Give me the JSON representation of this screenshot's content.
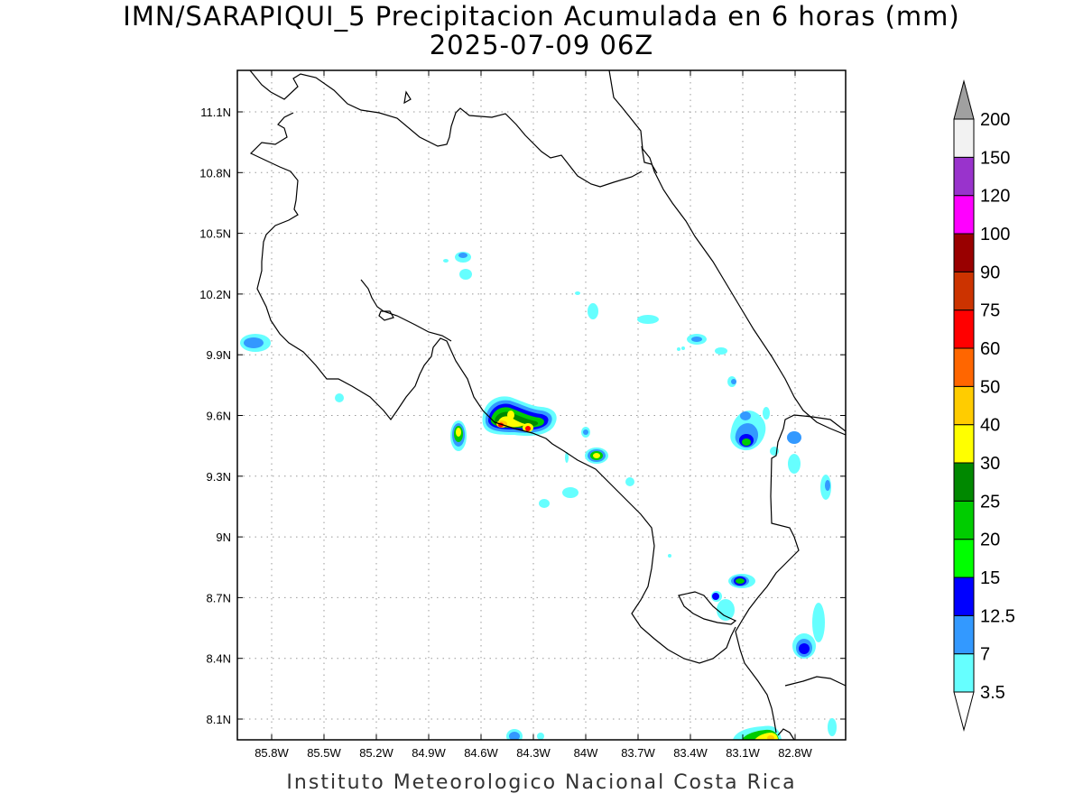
{
  "title": {
    "line1": "IMN/SARAPIQUI_5 Precipitacion Acumulada en 6 horas (mm)",
    "line2": "2025-07-09 06Z"
  },
  "footer": "Instituto Meteorologico Nacional Costa Rica",
  "map": {
    "lon_range": [
      -86.0,
      -83.0
    ],
    "lat_range": [
      8.0,
      11.2
    ],
    "x_ticks": [
      "85.8W",
      "85.5W",
      "85.2W",
      "84.9W",
      "84.6W",
      "84.3W",
      "84W",
      "83.7W",
      "83.4W",
      "83.1W",
      "82.8W"
    ],
    "y_ticks": [
      "11.1N",
      "10.8N",
      "10.5N",
      "10.2N",
      "9.9N",
      "9.6N",
      "9.3N",
      "9N",
      "8.7N",
      "8.4N",
      "8.1N"
    ],
    "grid": "dotted"
  },
  "colorbar": {
    "levels": [
      "3.5",
      "7",
      "12.5",
      "15",
      "20",
      "25",
      "30",
      "40",
      "50",
      "60",
      "75",
      "90",
      "100",
      "120",
      "150",
      "200"
    ],
    "colors": [
      "#66ffff",
      "#3399ff",
      "#0000ff",
      "#00ff00",
      "#00cc00",
      "#008800",
      "#ffff00",
      "#ffcc00",
      "#ff6600",
      "#ff0000",
      "#cc3300",
      "#990000",
      "#ff00ff",
      "#9933cc",
      "#f2f2f2"
    ],
    "upper_extend_color": "#a0a0a0",
    "lower_extend_color": "#ffffff"
  }
}
